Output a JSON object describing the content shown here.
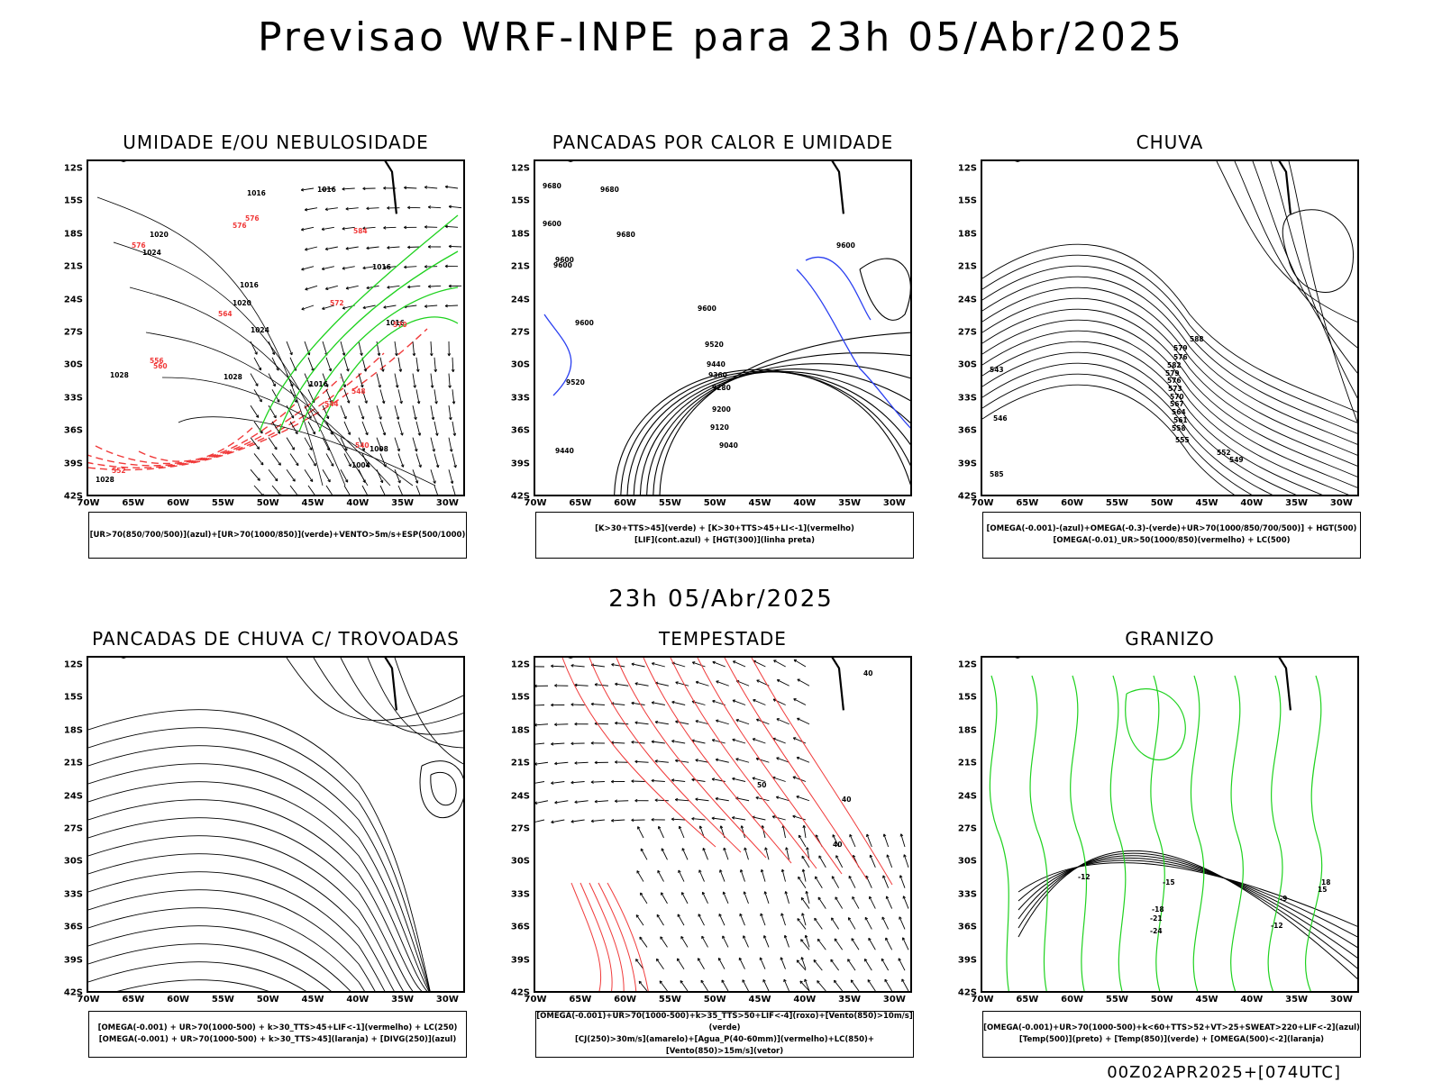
{
  "header": {
    "title": "Previsao WRF-INPE  para 23h 05/Abr/2025",
    "subtitle": "23h 05/Abr/2025",
    "footer": "00Z02APR2025+[074UTC]"
  },
  "axes": {
    "lat_labels": [
      "12S",
      "15S",
      "18S",
      "21S",
      "24S",
      "27S",
      "30S",
      "33S",
      "36S",
      "39S",
      "42S"
    ],
    "lon_labels": [
      "70W",
      "65W",
      "60W",
      "55W",
      "50W",
      "45W",
      "40W",
      "35W",
      "30W"
    ]
  },
  "panels": [
    {
      "title": "UMIDADE E/OU NEBULOSIDADE",
      "legend": [
        "[UR>70(850/700/500)](azul)+[UR>70(1000/850)](verde)+VENTO>5m/s+ESP(500/1000)"
      ],
      "labels": [
        "1016",
        "1016",
        "1020",
        "1024",
        "1028",
        "1028",
        "1024",
        "1016",
        "1016",
        "1016",
        "1008",
        "1004",
        "1028",
        "552",
        "556",
        "560",
        "576",
        "576",
        "576",
        "540",
        "544",
        "548",
        "564",
        "570",
        "572",
        "584",
        "1020",
        "1016"
      ]
    },
    {
      "title": "PANCADAS POR CALOR E UMIDADE",
      "legend": [
        "[K>30+TTS>45](verde) + [K>30+TTS>45+LI<-1](vermelho)",
        "[LIF](cont.azul) + [HGT(300)](linha preta)"
      ],
      "labels": [
        "9680",
        "9680",
        "9600",
        "9600",
        "9600",
        "9600",
        "9680",
        "9600",
        "9520",
        "9440",
        "9360",
        "9280",
        "9200",
        "9120",
        "9040",
        "9520",
        "9440",
        "9600"
      ]
    },
    {
      "title": "CHUVA",
      "legend": [
        "[OMEGA(-0.001)-(azul)+OMEGA(-0.3)-(verde)+UR>70(1000/850/700/500)] + HGT(500)",
        "[OMEGA(-0.01)_UR>50(1000/850)(vermelho) + LC(500)"
      ],
      "labels": [
        "579",
        "576",
        "582",
        "579",
        "576",
        "573",
        "570",
        "567",
        "564",
        "561",
        "558",
        "555",
        "552",
        "549",
        "546",
        "543",
        "585",
        "588"
      ]
    },
    {
      "title": "PANCADAS DE CHUVA C/ TROVOADAS",
      "legend": [
        "[OMEGA(-0.001) + UR>70(1000-500) + k>30_TTS>45+LIF<-1](vermelho) + LC(250)",
        "[OMEGA(-0.001) + UR>70(1000-500) + k>30_TTS>45](laranja) + [DIVG(250)](azul)"
      ],
      "labels": []
    },
    {
      "title": "TEMPESTADE",
      "legend": [
        "[OMEGA(-0.001)+UR>70(1000-500)+k>35_TTS>50+LIF<-4](roxo)+[Vento(850)>10m/s](verde)",
        "[CJ(250)>30m/s](amarelo)+[Agua_P(40-60mm)](vermelho)+LC(850)+[Vento(850)>15m/s](vetor)"
      ],
      "labels": [
        "40",
        "40",
        "40",
        "50"
      ]
    },
    {
      "title": "GRANIZO",
      "legend": [
        "[OMEGA(-0.001)+UR>70(1000-500)+k<60+TTS>52+VT>25+SWEAT>220+LIF<-2](azul)",
        "[Temp(500)](preto) + [Temp(850)](verde) + [OMEGA(500)<-2](laranja)"
      ],
      "labels": [
        "-12",
        "-15",
        "-18",
        "-21",
        "-24",
        "-12",
        "-9",
        "18",
        "15"
      ]
    }
  ],
  "colors": {
    "red": "#f03a3a",
    "green": "#1fd21f",
    "blue": "#2a3ff0",
    "lightblue": "#a6a6f4",
    "darkteal": "#1f4f4f",
    "yellow": "#e3dd2c",
    "orange": "#f07820",
    "purple": "#b030c8"
  }
}
